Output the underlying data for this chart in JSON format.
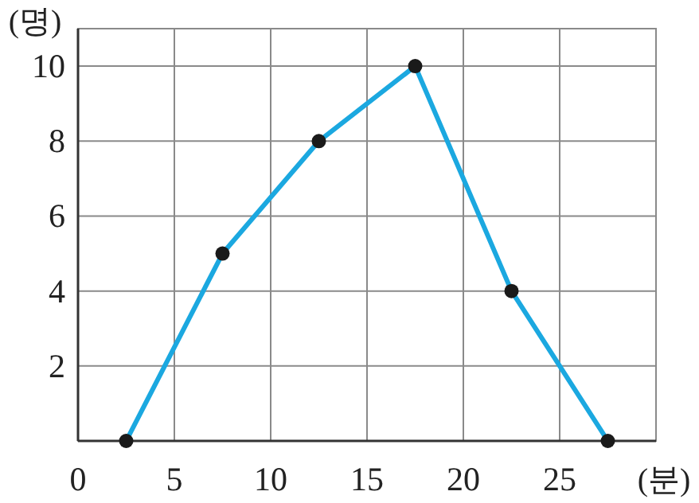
{
  "chart_data": {
    "type": "line",
    "xlabel": "(분)",
    "ylabel": "(명)",
    "x": [
      2.5,
      7.5,
      12.5,
      17.5,
      22.5,
      27.5
    ],
    "series": [
      {
        "color": "#1ba8e0",
        "values": [
          0,
          5,
          8,
          10,
          4,
          0
        ]
      }
    ],
    "xlim": [
      0,
      30
    ],
    "ylim": [
      0,
      11
    ],
    "xticks": [
      0,
      5,
      10,
      15,
      20,
      25,
      {
        "value": 30,
        "label": null
      }
    ],
    "yticks": [
      {
        "value": 0,
        "label": null
      },
      2,
      4,
      6,
      8,
      10
    ],
    "grid": true,
    "marker": "circle",
    "line_style": "solid"
  }
}
